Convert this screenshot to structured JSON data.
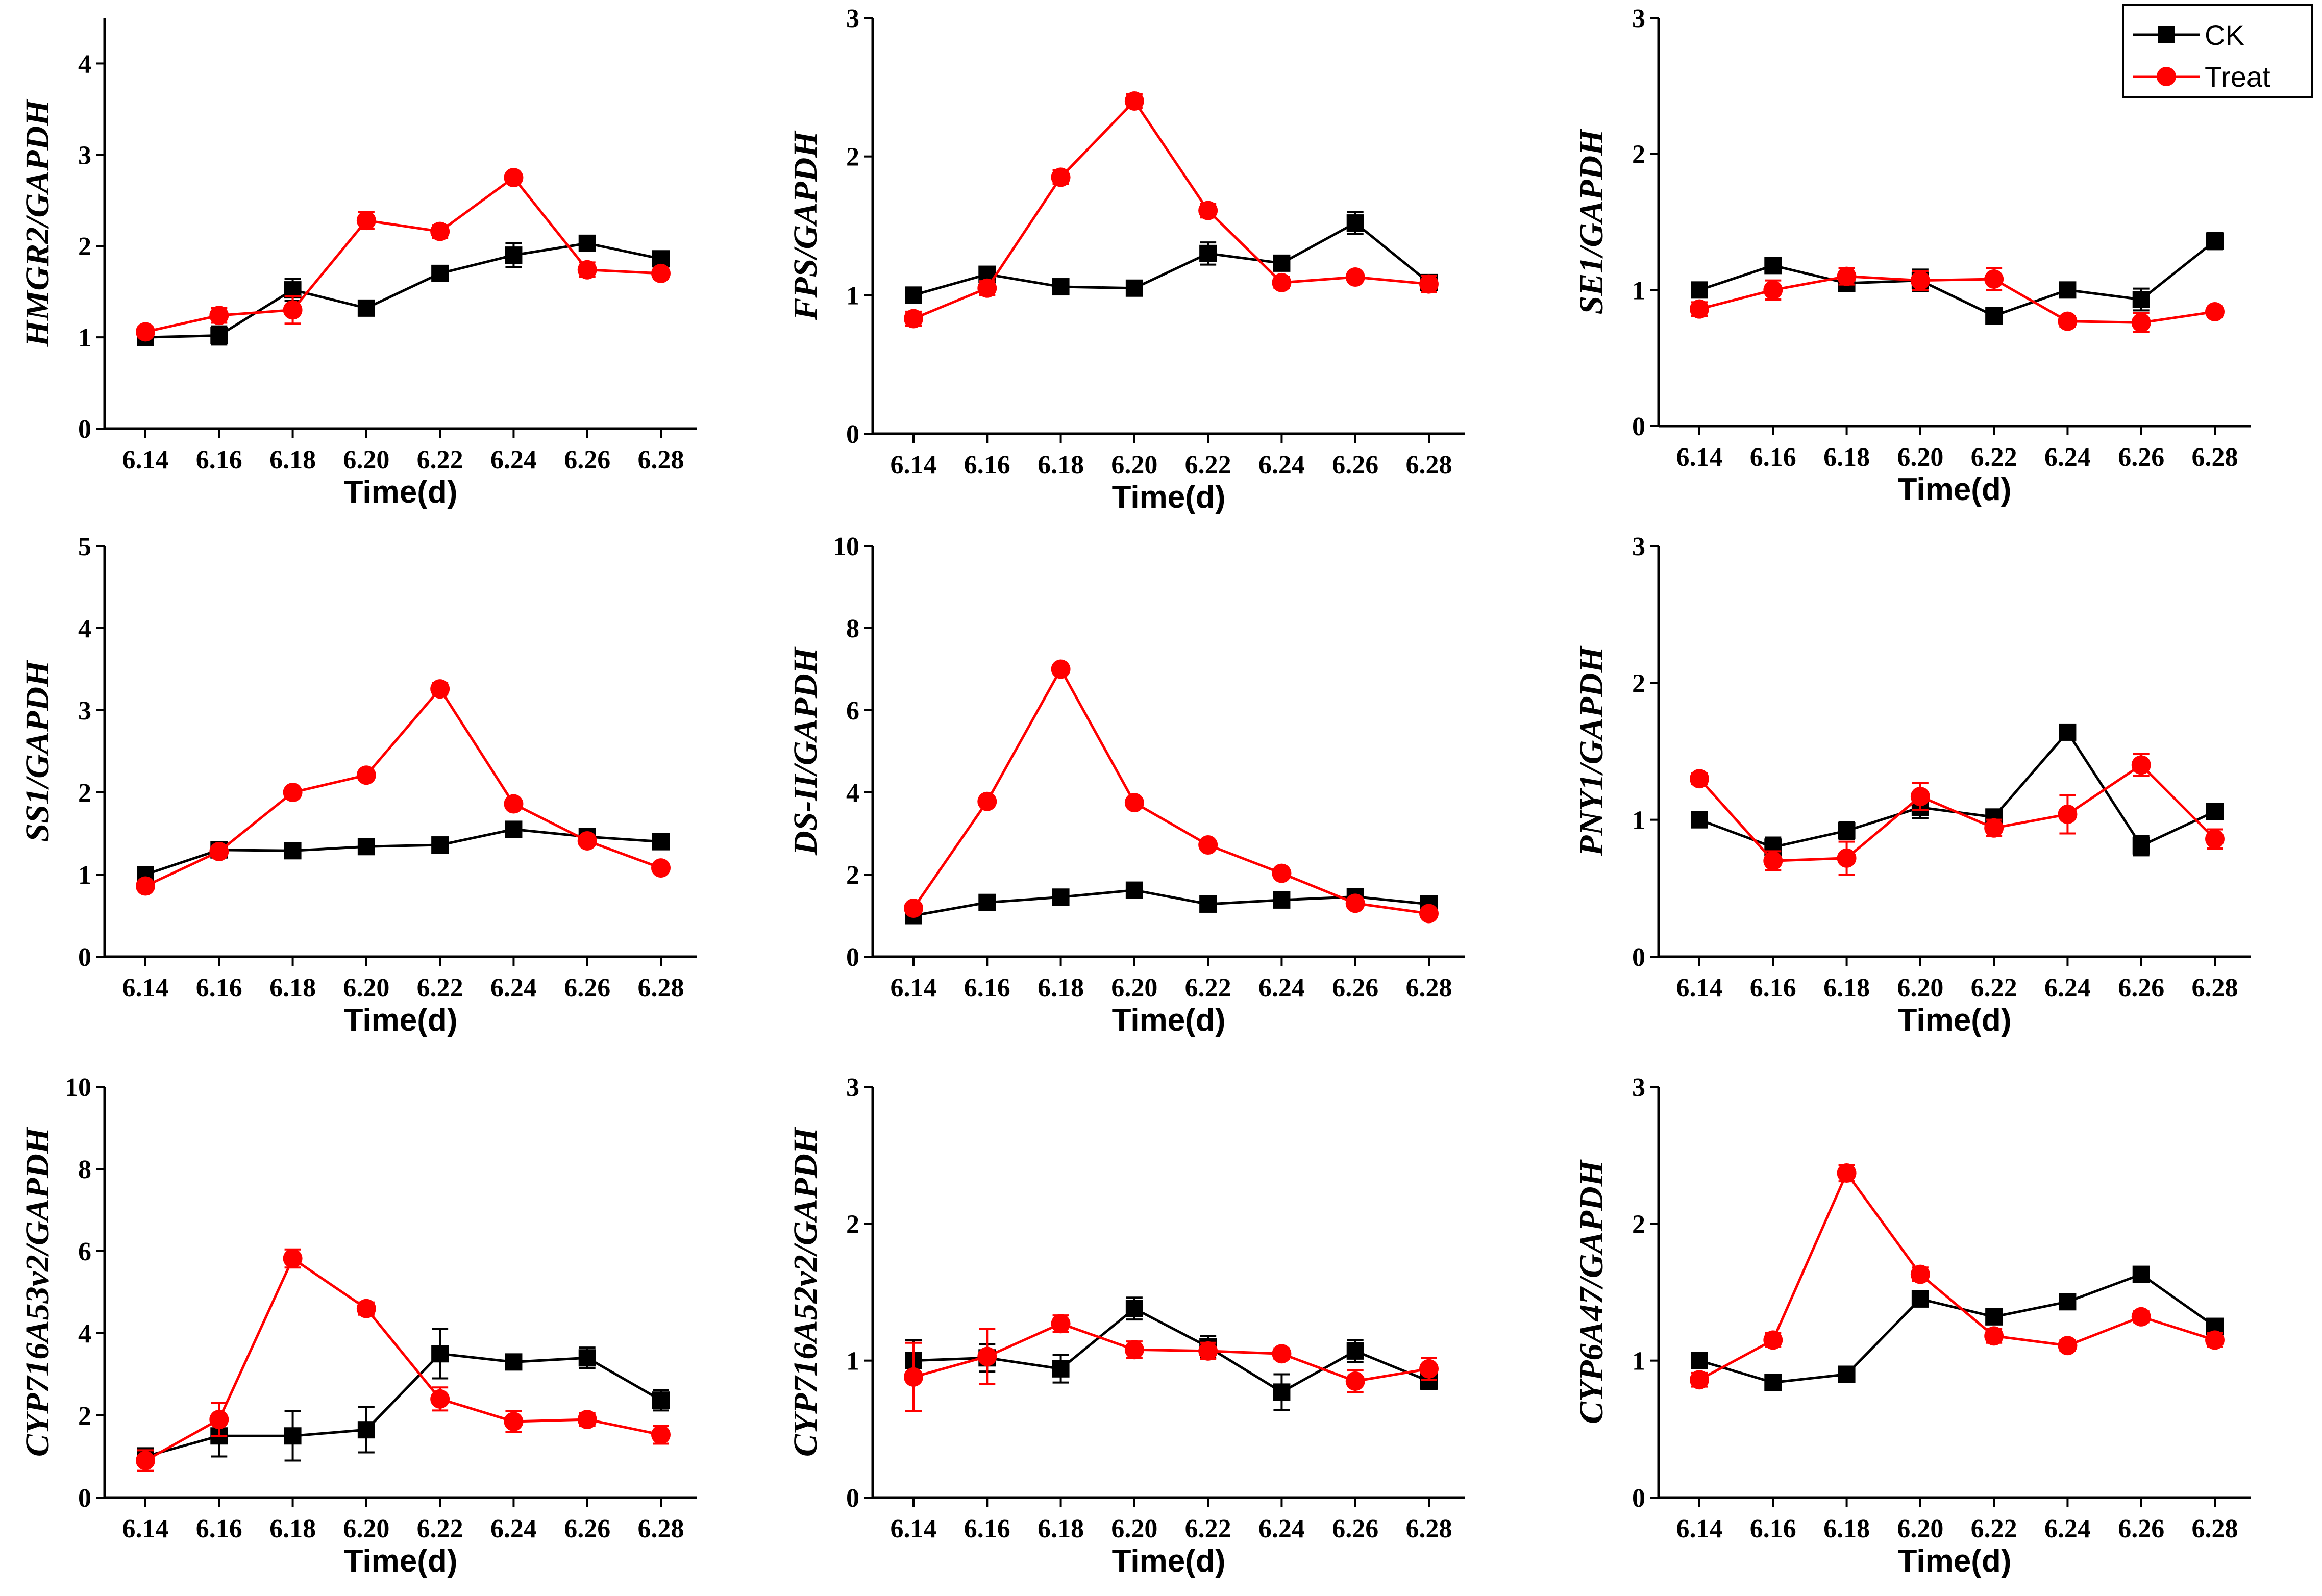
{
  "colors": {
    "ck": "#000000",
    "treat": "#ff0000"
  },
  "legend": {
    "ck": "CK",
    "treat": "Treat"
  },
  "chart_data": [
    {
      "type": "line",
      "ylabel": "HMGR2/GAPDH",
      "xlabel": "Time(d)",
      "categories": [
        "6.14",
        "6.16",
        "6.18",
        "6.20",
        "6.22",
        "6.24",
        "6.26",
        "6.28"
      ],
      "ylim": [
        0,
        4.5
      ],
      "yticks": [
        0,
        1,
        2,
        3,
        4
      ],
      "series": [
        {
          "name": "CK",
          "values": [
            1.0,
            1.02,
            1.52,
            1.32,
            1.7,
            1.9,
            2.03,
            1.86
          ],
          "errors": [
            0.05,
            0.1,
            0.12,
            0.08,
            0.07,
            0.13,
            0.08,
            0.06
          ]
        },
        {
          "name": "Treat",
          "values": [
            1.06,
            1.24,
            1.3,
            2.28,
            2.16,
            2.75,
            1.74,
            1.7
          ],
          "errors": [
            0.05,
            0.08,
            0.15,
            0.09,
            0.07,
            0.05,
            0.08,
            0.06
          ]
        }
      ]
    },
    {
      "type": "line",
      "ylabel": "FPS/GAPDH",
      "xlabel": "Time(d)",
      "categories": [
        "6.14",
        "6.16",
        "6.18",
        "6.20",
        "6.22",
        "6.24",
        "6.26",
        "6.28"
      ],
      "ylim": [
        0,
        3
      ],
      "yticks": [
        0,
        1,
        2,
        3
      ],
      "series": [
        {
          "name": "CK",
          "values": [
            1.0,
            1.15,
            1.06,
            1.05,
            1.3,
            1.23,
            1.52,
            1.09
          ],
          "errors": [
            0.04,
            0.04,
            0.04,
            0.04,
            0.08,
            0.04,
            0.08,
            0.05
          ]
        },
        {
          "name": "Treat",
          "values": [
            0.83,
            1.05,
            1.85,
            2.4,
            1.61,
            1.09,
            1.13,
            1.08
          ],
          "errors": [
            0.05,
            0.05,
            0.05,
            0.05,
            0.05,
            0.04,
            0.03,
            0.06
          ]
        }
      ]
    },
    {
      "type": "line",
      "ylabel": "SE1/GAPDH",
      "xlabel": "Time(d)",
      "categories": [
        "6.14",
        "6.16",
        "6.18",
        "6.20",
        "6.22",
        "6.24",
        "6.26",
        "6.28"
      ],
      "ylim": [
        0,
        3
      ],
      "yticks": [
        0,
        1,
        2,
        3
      ],
      "series": [
        {
          "name": "CK",
          "values": [
            1.0,
            1.18,
            1.05,
            1.07,
            0.81,
            1.0,
            0.93,
            1.36
          ],
          "errors": [
            0.04,
            0.05,
            0.06,
            0.08,
            0.05,
            0.04,
            0.08,
            0.06
          ]
        },
        {
          "name": "Treat",
          "values": [
            0.86,
            1.0,
            1.1,
            1.07,
            1.08,
            0.77,
            0.76,
            0.84
          ],
          "errors": [
            0.05,
            0.07,
            0.06,
            0.07,
            0.08,
            0.04,
            0.07,
            0.04
          ]
        }
      ]
    },
    {
      "type": "line",
      "ylabel": "SS1/GAPDH",
      "xlabel": "Time(d)",
      "categories": [
        "6.14",
        "6.16",
        "6.18",
        "6.20",
        "6.22",
        "6.24",
        "6.26",
        "6.28"
      ],
      "ylim": [
        0,
        5
      ],
      "yticks": [
        0,
        1,
        2,
        3,
        4,
        5
      ],
      "series": [
        {
          "name": "CK",
          "values": [
            1.0,
            1.3,
            1.29,
            1.34,
            1.36,
            1.55,
            1.46,
            1.4
          ],
          "errors": [
            0.05,
            0.06,
            0.05,
            0.07,
            0.07,
            0.05,
            0.08,
            0.06
          ]
        },
        {
          "name": "Treat",
          "values": [
            0.86,
            1.28,
            2.0,
            2.21,
            3.26,
            1.86,
            1.41,
            1.08
          ],
          "errors": [
            0.05,
            0.05,
            0.05,
            0.05,
            0.07,
            0.05,
            0.05,
            0.05
          ]
        }
      ]
    },
    {
      "type": "line",
      "ylabel": "DS-II/GAPDH",
      "xlabel": "Time(d)",
      "categories": [
        "6.14",
        "6.16",
        "6.18",
        "6.20",
        "6.22",
        "6.24",
        "6.26",
        "6.28"
      ],
      "ylim": [
        0,
        10
      ],
      "yticks": [
        0,
        2,
        4,
        6,
        8,
        10
      ],
      "series": [
        {
          "name": "CK",
          "values": [
            1.0,
            1.32,
            1.45,
            1.62,
            1.28,
            1.38,
            1.46,
            1.28
          ],
          "errors": [
            0.05,
            0.07,
            0.08,
            0.08,
            0.07,
            0.06,
            0.07,
            0.06
          ]
        },
        {
          "name": "Treat",
          "values": [
            1.18,
            3.78,
            7.0,
            3.75,
            2.72,
            2.03,
            1.3,
            1.05
          ],
          "errors": [
            0.06,
            0.06,
            0.06,
            0.05,
            0.06,
            0.05,
            0.05,
            0.05
          ]
        }
      ]
    },
    {
      "type": "line",
      "ylabel": "PNY1/GAPDH",
      "xlabel": "Time(d)",
      "categories": [
        "6.14",
        "6.16",
        "6.18",
        "6.20",
        "6.22",
        "6.24",
        "6.26",
        "6.28"
      ],
      "ylim": [
        0,
        3
      ],
      "yticks": [
        0,
        1,
        2,
        3
      ],
      "series": [
        {
          "name": "CK",
          "values": [
            1.0,
            0.8,
            0.92,
            1.09,
            1.02,
            1.64,
            0.81,
            1.06
          ],
          "errors": [
            0.04,
            0.07,
            0.06,
            0.08,
            0.05,
            0.03,
            0.07,
            0.04
          ]
        },
        {
          "name": "Treat",
          "values": [
            1.3,
            0.7,
            0.72,
            1.17,
            0.94,
            1.04,
            1.4,
            0.86
          ],
          "errors": [
            0.04,
            0.07,
            0.12,
            0.1,
            0.06,
            0.14,
            0.08,
            0.07
          ]
        }
      ]
    },
    {
      "type": "line",
      "ylabel": "CYP716A53v2/GAPDH",
      "xlabel": "Time(d)",
      "categories": [
        "6.14",
        "6.16",
        "6.18",
        "6.20",
        "6.22",
        "6.24",
        "6.26",
        "6.28"
      ],
      "ylim": [
        0,
        10
      ],
      "yticks": [
        0,
        2,
        4,
        6,
        8,
        10
      ],
      "series": [
        {
          "name": "CK",
          "values": [
            1.0,
            1.5,
            1.5,
            1.65,
            3.5,
            3.3,
            3.4,
            2.37
          ],
          "errors": [
            0.2,
            0.5,
            0.6,
            0.55,
            0.6,
            0.18,
            0.25,
            0.25
          ]
        },
        {
          "name": "Treat",
          "values": [
            0.9,
            1.9,
            5.82,
            4.6,
            2.4,
            1.85,
            1.9,
            1.53
          ],
          "errors": [
            0.25,
            0.4,
            0.22,
            0.15,
            0.28,
            0.25,
            0.15,
            0.22
          ]
        }
      ]
    },
    {
      "type": "line",
      "ylabel": "CYP716A52v2/GAPDH",
      "xlabel": "Time(d)",
      "categories": [
        "6.14",
        "6.16",
        "6.18",
        "6.20",
        "6.22",
        "6.24",
        "6.26",
        "6.28"
      ],
      "ylim": [
        0,
        3
      ],
      "yticks": [
        0,
        1,
        2,
        3
      ],
      "series": [
        {
          "name": "CK",
          "values": [
            1.0,
            1.02,
            0.94,
            1.38,
            1.1,
            0.77,
            1.07,
            0.85
          ],
          "errors": [
            0.15,
            0.1,
            0.1,
            0.08,
            0.08,
            0.13,
            0.08,
            0.06
          ]
        },
        {
          "name": "Treat",
          "values": [
            0.88,
            1.03,
            1.27,
            1.08,
            1.07,
            1.05,
            0.85,
            0.94
          ],
          "errors": [
            0.25,
            0.2,
            0.06,
            0.06,
            0.06,
            0.04,
            0.08,
            0.08
          ]
        }
      ]
    },
    {
      "type": "line",
      "ylabel": "CYP6A47/GAPDH",
      "xlabel": "Time(d)",
      "categories": [
        "6.14",
        "6.16",
        "6.18",
        "6.20",
        "6.22",
        "6.24",
        "6.26",
        "6.28"
      ],
      "ylim": [
        0,
        3
      ],
      "yticks": [
        0,
        1,
        2,
        3
      ],
      "series": [
        {
          "name": "CK",
          "values": [
            1.0,
            0.84,
            0.9,
            1.45,
            1.32,
            1.43,
            1.63,
            1.25
          ],
          "errors": [
            0.04,
            0.03,
            0.05,
            0.04,
            0.04,
            0.04,
            0.03,
            0.05
          ]
        },
        {
          "name": "Treat",
          "values": [
            0.86,
            1.15,
            2.37,
            1.63,
            1.18,
            1.11,
            1.32,
            1.15
          ],
          "errors": [
            0.05,
            0.05,
            0.06,
            0.05,
            0.05,
            0.04,
            0.04,
            0.05
          ]
        }
      ]
    }
  ]
}
